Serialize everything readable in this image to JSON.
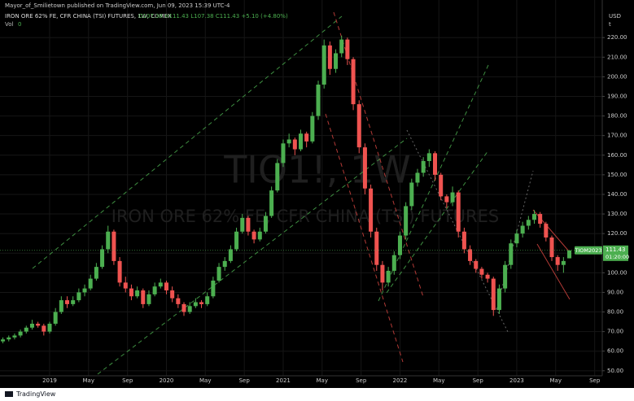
{
  "header": {
    "published": "Mayor_of_Smilietown published on TradingView.com, Jun 09, 2023 15:39 UTC-4",
    "footer": "TradingView"
  },
  "chart_data": {
    "type": "candlestick",
    "legend": "IRON ORE 62% FE, CFR CHINA (TSI) FUTURES, 1W, COMEX",
    "ohlc_text": "O107.38 H111.43 L107.38 C111.43 +5.10 (+4.80%)",
    "volume_label": "Vol",
    "volume_value": "0",
    "watermark_symbol": "TIO1!, 1W",
    "watermark_name": "IRON ORE 62% FE, CFR CHINA (TSI) FUTURES",
    "currency": "USD",
    "currency_unit": "t",
    "contract": "TIOM2023",
    "last_price": {
      "value": 111.43,
      "label": "111.43"
    },
    "countdown": "01:20:00",
    "up_color": "#4caf50",
    "down_color": "#ef5350",
    "xlim": [
      2018.575,
      2023.732
    ],
    "ylim": [
      47.44,
      239.17
    ],
    "xticks": [
      {
        "value": 2019,
        "label": "2019"
      },
      {
        "value": 2019.333,
        "label": "May"
      },
      {
        "value": 2019.667,
        "label": "Sep"
      },
      {
        "value": 2020,
        "label": "2020"
      },
      {
        "value": 2020.333,
        "label": "May"
      },
      {
        "value": 2020.667,
        "label": "Sep"
      },
      {
        "value": 2021,
        "label": "2021"
      },
      {
        "value": 2021.333,
        "label": "May"
      },
      {
        "value": 2021.667,
        "label": "Sep"
      },
      {
        "value": 2022,
        "label": "2022"
      },
      {
        "value": 2022.333,
        "label": "May"
      },
      {
        "value": 2022.667,
        "label": "Sep"
      },
      {
        "value": 2023,
        "label": "2023"
      },
      {
        "value": 2023.333,
        "label": "May"
      },
      {
        "value": 2023.667,
        "label": "Sep"
      }
    ],
    "yticks": [
      {
        "value": 50,
        "label": "50.00"
      },
      {
        "value": 60,
        "label": "60.00"
      },
      {
        "value": 70,
        "label": "70.00"
      },
      {
        "value": 80,
        "label": "80.00"
      },
      {
        "value": 90,
        "label": "90.00"
      },
      {
        "value": 100,
        "label": "100.00"
      },
      {
        "value": 110,
        "label": "110.00"
      },
      {
        "value": 120,
        "label": "120.00"
      },
      {
        "value": 130,
        "label": "130.00"
      },
      {
        "value": 140,
        "label": "140.00"
      },
      {
        "value": 150,
        "label": "150.00"
      },
      {
        "value": 160,
        "label": "160.00"
      },
      {
        "value": 170,
        "label": "170.00"
      },
      {
        "value": 180,
        "label": "180.00"
      },
      {
        "value": 190,
        "label": "190.00"
      },
      {
        "value": 200,
        "label": "200.00"
      },
      {
        "value": 210,
        "label": "210.00"
      },
      {
        "value": 220,
        "label": "220.00"
      }
    ],
    "grid": true,
    "x": [
      2018.6,
      2018.65,
      2018.7,
      2018.75,
      2018.8,
      2018.85,
      2018.9,
      2018.95,
      2019,
      2019.05,
      2019.1,
      2019.15,
      2019.2,
      2019.25,
      2019.3,
      2019.35,
      2019.4,
      2019.45,
      2019.5,
      2019.55,
      2019.6,
      2019.65,
      2019.7,
      2019.75,
      2019.8,
      2019.85,
      2019.9,
      2019.95,
      2020,
      2020.05,
      2020.1,
      2020.15,
      2020.2,
      2020.25,
      2020.3,
      2020.35,
      2020.4,
      2020.45,
      2020.5,
      2020.55,
      2020.6,
      2020.65,
      2020.7,
      2020.75,
      2020.8,
      2020.85,
      2020.9,
      2020.95,
      2021,
      2021.05,
      2021.1,
      2021.15,
      2021.2,
      2021.25,
      2021.3,
      2021.35,
      2021.4,
      2021.45,
      2021.5,
      2021.55,
      2021.6,
      2021.65,
      2021.7,
      2021.75,
      2021.8,
      2021.85,
      2021.9,
      2021.95,
      2022,
      2022.05,
      2022.1,
      2022.15,
      2022.2,
      2022.25,
      2022.3,
      2022.35,
      2022.4,
      2022.45,
      2022.5,
      2022.55,
      2022.6,
      2022.65,
      2022.7,
      2022.75,
      2022.8,
      2022.85,
      2022.9,
      2022.95,
      2023,
      2023.05,
      2023.1,
      2023.15,
      2023.2,
      2023.25,
      2023.3,
      2023.35,
      2023.4,
      2023.45
    ],
    "candles": [
      [
        65,
        67,
        64,
        66
      ],
      [
        66,
        68,
        65,
        67
      ],
      [
        67,
        69,
        66,
        68
      ],
      [
        68,
        71,
        67,
        70
      ],
      [
        70,
        73,
        69,
        72
      ],
      [
        72,
        76,
        71,
        74
      ],
      [
        74,
        75,
        72,
        73
      ],
      [
        73,
        74,
        68,
        70
      ],
      [
        70,
        75,
        69,
        74
      ],
      [
        74,
        82,
        73,
        80
      ],
      [
        80,
        88,
        79,
        86
      ],
      [
        86,
        88,
        82,
        84
      ],
      [
        84,
        88,
        83,
        86
      ],
      [
        86,
        92,
        85,
        90
      ],
      [
        90,
        94,
        88,
        92
      ],
      [
        92,
        99,
        91,
        97
      ],
      [
        97,
        105,
        96,
        103
      ],
      [
        103,
        114,
        102,
        112
      ],
      [
        112,
        124,
        110,
        121
      ],
      [
        121,
        122,
        104,
        106
      ],
      [
        106,
        108,
        93,
        95
      ],
      [
        95,
        98,
        90,
        92
      ],
      [
        92,
        94,
        86,
        88
      ],
      [
        88,
        93,
        87,
        91
      ],
      [
        91,
        92,
        82,
        84
      ],
      [
        84,
        91,
        83,
        89
      ],
      [
        89,
        95,
        88,
        93
      ],
      [
        93,
        97,
        92,
        95
      ],
      [
        95,
        96,
        89,
        91
      ],
      [
        91,
        93,
        85,
        87
      ],
      [
        87,
        89,
        82,
        84
      ],
      [
        84,
        85,
        78,
        80
      ],
      [
        80,
        85,
        79,
        83
      ],
      [
        83,
        87,
        82,
        85
      ],
      [
        85,
        86,
        82,
        84
      ],
      [
        84,
        90,
        83,
        88
      ],
      [
        88,
        98,
        87,
        96
      ],
      [
        96,
        105,
        95,
        103
      ],
      [
        103,
        108,
        101,
        106
      ],
      [
        106,
        114,
        105,
        112
      ],
      [
        112,
        123,
        111,
        121
      ],
      [
        121,
        130,
        120,
        128
      ],
      [
        128,
        129,
        119,
        121
      ],
      [
        121,
        122,
        115,
        117
      ],
      [
        117,
        123,
        116,
        121
      ],
      [
        121,
        131,
        120,
        129
      ],
      [
        129,
        144,
        128,
        142
      ],
      [
        142,
        158,
        141,
        156
      ],
      [
        156,
        168,
        154,
        166
      ],
      [
        166,
        171,
        164,
        168
      ],
      [
        168,
        169,
        160,
        163
      ],
      [
        163,
        173,
        162,
        171
      ],
      [
        171,
        172,
        164,
        167
      ],
      [
        167,
        182,
        166,
        180
      ],
      [
        180,
        198,
        178,
        196
      ],
      [
        196,
        219,
        194,
        216
      ],
      [
        216,
        218,
        201,
        204
      ],
      [
        204,
        214,
        202,
        212
      ],
      [
        212,
        221,
        210,
        219
      ],
      [
        219,
        220,
        206,
        209
      ],
      [
        209,
        210,
        183,
        186
      ],
      [
        186,
        188,
        161,
        164
      ],
      [
        164,
        166,
        140,
        143
      ],
      [
        143,
        145,
        118,
        121
      ],
      [
        121,
        123,
        101,
        104
      ],
      [
        104,
        106,
        91,
        95
      ],
      [
        95,
        103,
        93,
        101
      ],
      [
        101,
        111,
        99,
        109
      ],
      [
        109,
        121,
        107,
        119
      ],
      [
        119,
        136,
        117,
        134
      ],
      [
        134,
        148,
        132,
        146
      ],
      [
        146,
        153,
        144,
        151
      ],
      [
        151,
        159,
        149,
        157
      ],
      [
        157,
        163,
        154,
        161
      ],
      [
        161,
        162,
        147,
        150
      ],
      [
        150,
        151,
        137,
        139
      ],
      [
        139,
        140,
        133,
        136
      ],
      [
        136,
        144,
        134,
        141
      ],
      [
        141,
        142,
        118,
        121
      ],
      [
        121,
        123,
        110,
        112
      ],
      [
        112,
        114,
        104,
        106
      ],
      [
        106,
        107,
        100,
        102
      ],
      [
        102,
        103,
        97,
        99
      ],
      [
        99,
        100,
        95,
        97
      ],
      [
        97,
        98,
        78,
        81
      ],
      [
        81,
        94,
        79,
        92
      ],
      [
        92,
        106,
        90,
        104
      ],
      [
        104,
        117,
        102,
        115
      ],
      [
        115,
        122,
        113,
        120
      ],
      [
        120,
        126,
        118,
        124
      ],
      [
        124,
        129,
        122,
        127
      ],
      [
        127,
        132,
        125,
        130
      ],
      [
        130,
        131,
        123,
        125
      ],
      [
        125,
        126,
        116,
        118
      ],
      [
        118,
        119,
        106,
        108
      ],
      [
        108,
        109,
        101,
        104
      ],
      [
        104,
        108,
        100,
        106
      ],
      [
        107.38,
        111.43,
        107.38,
        111.43
      ]
    ]
  }
}
